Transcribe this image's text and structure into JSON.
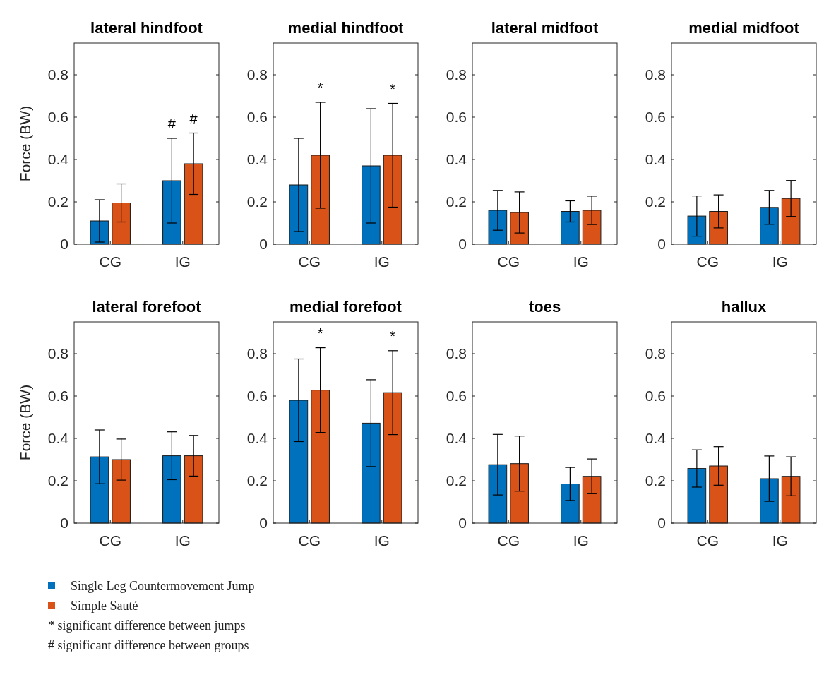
{
  "chart_data": [
    {
      "type": "bar",
      "title": "lateral hindfoot",
      "ylabel": "Force (BW)",
      "categories": [
        "CG",
        "IG"
      ],
      "ylim": [
        0,
        0.95
      ],
      "yticks": [
        0,
        0.2,
        0.4,
        0.6,
        0.8
      ],
      "legend": "bottom",
      "series": [
        {
          "name": "Single Leg Countermovement Jump",
          "color": "#0072bd",
          "values": [
            0.11,
            0.3
          ],
          "errors": [
            0.1,
            0.2
          ]
        },
        {
          "name": "Simple Sauté",
          "color": "#d95319",
          "values": [
            0.195,
            0.38
          ],
          "errors": [
            0.09,
            0.145
          ]
        }
      ],
      "annotations": [
        "#",
        "#",
        "* significant difference between jumps",
        "# significant difference between groups"
      ]
    },
    {
      "type": "bar",
      "title": "medial hindfoot",
      "categories": [
        "CG",
        "IG"
      ],
      "ylim": [
        0,
        0.95
      ],
      "yticks": [
        0,
        0.2,
        0.4,
        0.6,
        0.8
      ],
      "series": [
        {
          "color": "#0072bd",
          "values": [
            0.28,
            0.37
          ],
          "errors": [
            0.22,
            0.27
          ]
        },
        {
          "color": "#d95319",
          "values": [
            0.42,
            0.42
          ],
          "errors": [
            0.25,
            0.245
          ]
        }
      ],
      "annotations": [
        "*",
        "*"
      ]
    },
    {
      "type": "bar",
      "title": "lateral midfoot",
      "categories": [
        "CG",
        "IG"
      ],
      "ylim": [
        0,
        0.95
      ],
      "yticks": [
        0,
        0.2,
        0.4,
        0.6,
        0.8
      ],
      "series": [
        {
          "color": "#0072bd",
          "values": [
            0.16,
            0.155
          ],
          "errors": [
            0.094,
            0.05
          ]
        },
        {
          "color": "#d95319",
          "values": [
            0.15,
            0.16
          ],
          "errors": [
            0.097,
            0.067
          ]
        }
      ]
    },
    {
      "type": "bar",
      "title": "medial midfoot",
      "categories": [
        "CG",
        "IG"
      ],
      "ylim": [
        0,
        0.95
      ],
      "yticks": [
        0,
        0.2,
        0.4,
        0.6,
        0.8
      ],
      "series": [
        {
          "color": "#0072bd",
          "values": [
            0.133,
            0.174
          ],
          "errors": [
            0.095,
            0.08
          ]
        },
        {
          "color": "#d95319",
          "values": [
            0.155,
            0.216
          ],
          "errors": [
            0.078,
            0.085
          ]
        }
      ]
    },
    {
      "type": "bar",
      "title": "lateral forefoot",
      "ylabel": "Force (BW)",
      "categories": [
        "CG",
        "IG"
      ],
      "ylim": [
        0,
        0.95
      ],
      "yticks": [
        0,
        0.2,
        0.4,
        0.6,
        0.8
      ],
      "series": [
        {
          "color": "#0072bd",
          "values": [
            0.313,
            0.318
          ],
          "errors": [
            0.127,
            0.113
          ]
        },
        {
          "color": "#d95319",
          "values": [
            0.3,
            0.318
          ],
          "errors": [
            0.097,
            0.096
          ]
        }
      ]
    },
    {
      "type": "bar",
      "title": "medial forefoot",
      "categories": [
        "CG",
        "IG"
      ],
      "ylim": [
        0,
        0.95
      ],
      "yticks": [
        0,
        0.2,
        0.4,
        0.6,
        0.8
      ],
      "series": [
        {
          "color": "#0072bd",
          "values": [
            0.58,
            0.472
          ],
          "errors": [
            0.195,
            0.205
          ]
        },
        {
          "color": "#d95319",
          "values": [
            0.628,
            0.616
          ],
          "errors": [
            0.2,
            0.198
          ]
        }
      ],
      "annotations": [
        "*",
        "*"
      ]
    },
    {
      "type": "bar",
      "title": "toes",
      "categories": [
        "CG",
        "IG"
      ],
      "ylim": [
        0,
        0.95
      ],
      "yticks": [
        0,
        0.2,
        0.4,
        0.6,
        0.8
      ],
      "series": [
        {
          "color": "#0072bd",
          "values": [
            0.276,
            0.185
          ],
          "errors": [
            0.143,
            0.078
          ]
        },
        {
          "color": "#d95319",
          "values": [
            0.281,
            0.221
          ],
          "errors": [
            0.13,
            0.082
          ]
        }
      ]
    },
    {
      "type": "bar",
      "title": "hallux",
      "categories": [
        "CG",
        "IG"
      ],
      "ylim": [
        0,
        0.95
      ],
      "yticks": [
        0,
        0.2,
        0.4,
        0.6,
        0.8
      ],
      "series": [
        {
          "color": "#0072bd",
          "values": [
            0.258,
            0.21
          ],
          "errors": [
            0.088,
            0.107
          ]
        },
        {
          "color": "#d95319",
          "values": [
            0.27,
            0.221
          ],
          "errors": [
            0.091,
            0.092
          ]
        }
      ]
    }
  ]
}
